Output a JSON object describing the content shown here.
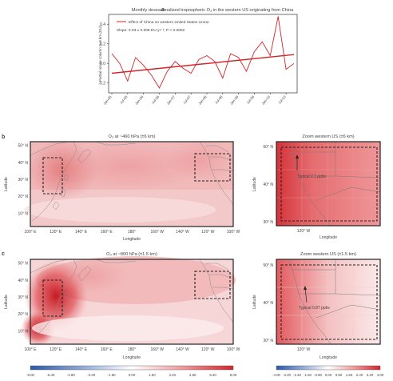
{
  "panel_a": {
    "letter": "a",
    "title": "Monthly deseasonalized tropospheric O₃ in the western US originating from China",
    "legend": "Effect of China on western United States ozone",
    "slope": "Slope: 0.03 ± 0.008 DU yr⁻¹; P < 0.0002",
    "ylabel": "Partial ozone column 3–9 km (DU)"
  },
  "panel_b": {
    "letter": "b",
    "map_title": "O₃ at ~460 hPa (±6 km)",
    "zoom_title": "Zoom western US (±6 km)",
    "annotation": "Typical 2.1 ppbv",
    "xlabel": "Longitude",
    "ylabel": "Latitude",
    "lat_ticks": [
      "50° N",
      "40° N",
      "30° N",
      "20° N",
      "10° N"
    ],
    "lon_ticks": [
      "100° E",
      "120° E",
      "140° E",
      "160° E",
      "180°",
      "160° W",
      "140° W",
      "120° W",
      "100° W"
    ],
    "zoom_lat_ticks": [
      "50° N",
      "40° N",
      "30° N"
    ],
    "zoom_lon_tick": "120° W"
  },
  "panel_c": {
    "letter": "c",
    "map_title": "O₃ at ~800 hPa (±1.5 km)",
    "zoom_title": "Zoom western US (±1.5 km)",
    "annotation": "Typical 0.87 ppbv",
    "xlabel": "Longitude",
    "ylabel": "Latitude",
    "lat_ticks": [
      "50° N",
      "40° N",
      "30° N",
      "20° N",
      "10° N"
    ],
    "lon_ticks": [
      "100° E",
      "120° E",
      "140° E",
      "160° E",
      "180°",
      "160° W",
      "140° W",
      "120° W",
      "100° W"
    ],
    "zoom_lat_ticks": [
      "50° N",
      "40° N",
      "30° N"
    ],
    "zoom_lon_tick": "120° W"
  },
  "colorbars": {
    "main_ticks": [
      "-8.00",
      "-6.40",
      "-4.80",
      "-3.20",
      "-1.60",
      "0.00",
      "1.60",
      "3.20",
      "4.80",
      "6.40",
      "8.00"
    ],
    "zoom_ticks": [
      "-4.00",
      "-3.20",
      "-2.40",
      "-1.60",
      "-0.80",
      "0.00",
      "0.80",
      "1.60",
      "2.40",
      "3.20",
      "4.00"
    ],
    "negative_color": "#2b5aa8",
    "positive_color": "#d1262b"
  },
  "chart_data": {
    "type": "line",
    "x": [
      "Jan-05",
      "Apr-05",
      "Jul-05",
      "Oct-05",
      "Jan-06",
      "Apr-06",
      "Jul-06",
      "Oct-06",
      "Jan-07",
      "Apr-07",
      "Jul-07",
      "Oct-07",
      "Jan-08",
      "Apr-08",
      "Jul-08",
      "Oct-08",
      "Jan-09",
      "Apr-09",
      "Jul-09",
      "Oct-09",
      "Jan-10",
      "Apr-10",
      "Jul-10",
      "Oct-10"
    ],
    "x_tick_labels": [
      "Jan-05",
      "Jul-05",
      "Jan-06",
      "Jul-06",
      "Jan-07",
      "Jul-07",
      "Jan-08",
      "Jul-08",
      "Jan-09",
      "Jul-09",
      "Jan-10",
      "Jul-10"
    ],
    "series": [
      {
        "name": "Effect of China on western United States ozone",
        "values": [
          0.1,
          0.0,
          -0.18,
          0.06,
          -0.02,
          -0.12,
          -0.25,
          -0.08,
          0.02,
          -0.05,
          -0.1,
          0.04,
          0.08,
          0.02,
          -0.15,
          0.1,
          0.06,
          -0.08,
          0.12,
          0.22,
          0.08,
          0.48,
          -0.06,
          0.0
        ]
      }
    ],
    "trend": {
      "start": -0.1,
      "end": 0.09
    },
    "ylim": [
      -0.3,
      0.5
    ],
    "yticks": [
      -0.2,
      0.0,
      0.2,
      0.4
    ],
    "ytick_labels": [
      "-0.2",
      "0.0",
      "0.2",
      "0.4"
    ],
    "ylabel": "Partial ozone column 3–9 km (DU)",
    "line_color": "#d1262b",
    "legend_position": "top-left"
  }
}
